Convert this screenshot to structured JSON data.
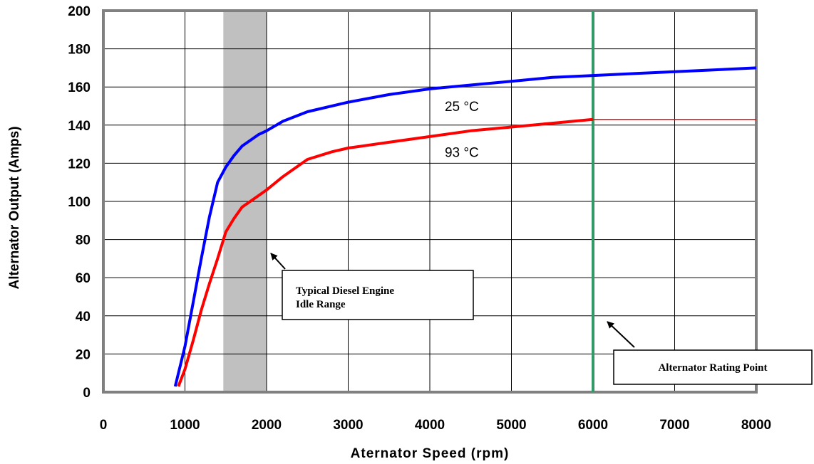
{
  "chart_data": {
    "type": "line",
    "title": "",
    "xlabel": "Aternator Speed (rpm)",
    "ylabel": "Alternator Output (Amps)",
    "xlim": [
      0,
      8000
    ],
    "ylim": [
      0,
      200
    ],
    "xticks": [
      "0",
      "1000",
      "2000",
      "3000",
      "4000",
      "5000",
      "6000",
      "7000",
      "8000"
    ],
    "yticks": [
      "0",
      "20",
      "40",
      "60",
      "80",
      "100",
      "120",
      "140",
      "160",
      "180",
      "200"
    ],
    "grid": true,
    "series": [
      {
        "name": "25 °C",
        "color": "#0000ff",
        "points": [
          [
            880,
            3
          ],
          [
            1000,
            24
          ],
          [
            1100,
            47
          ],
          [
            1200,
            70
          ],
          [
            1300,
            92
          ],
          [
            1400,
            110
          ],
          [
            1500,
            118
          ],
          [
            1600,
            124
          ],
          [
            1700,
            129
          ],
          [
            1800,
            132
          ],
          [
            1900,
            135
          ],
          [
            2000,
            137
          ],
          [
            2200,
            142
          ],
          [
            2500,
            147
          ],
          [
            3000,
            152
          ],
          [
            3500,
            156
          ],
          [
            4000,
            159
          ],
          [
            4500,
            161
          ],
          [
            5000,
            163
          ],
          [
            5500,
            165
          ],
          [
            6000,
            166
          ],
          [
            6500,
            167
          ],
          [
            7000,
            168
          ],
          [
            7500,
            169
          ],
          [
            8000,
            170
          ]
        ]
      },
      {
        "name": "93 °C",
        "color": "#ff0000",
        "points": [
          [
            920,
            3
          ],
          [
            1000,
            12
          ],
          [
            1100,
            27
          ],
          [
            1200,
            43
          ],
          [
            1300,
            57
          ],
          [
            1400,
            70
          ],
          [
            1500,
            84
          ],
          [
            1600,
            91
          ],
          [
            1700,
            97
          ],
          [
            1800,
            100
          ],
          [
            1900,
            103
          ],
          [
            2000,
            106
          ],
          [
            2200,
            113
          ],
          [
            2500,
            122
          ],
          [
            2800,
            126
          ],
          [
            3000,
            128
          ],
          [
            3500,
            131
          ],
          [
            4000,
            134
          ],
          [
            4500,
            137
          ],
          [
            5000,
            139
          ],
          [
            5500,
            141
          ],
          [
            6000,
            143
          ],
          [
            7000,
            143
          ],
          [
            8000,
            143
          ]
        ]
      }
    ],
    "idle_range": {
      "from": 1470,
      "to": 2000,
      "color": "#c0c0c0"
    },
    "rating_point": {
      "x": 6000,
      "color": "#339966"
    },
    "annotations": [
      {
        "text_lines": [
          "Typical Diesel Engine",
          "Idle Range"
        ]
      },
      {
        "text_lines": [
          "Alternator Rating Point"
        ]
      }
    ]
  }
}
